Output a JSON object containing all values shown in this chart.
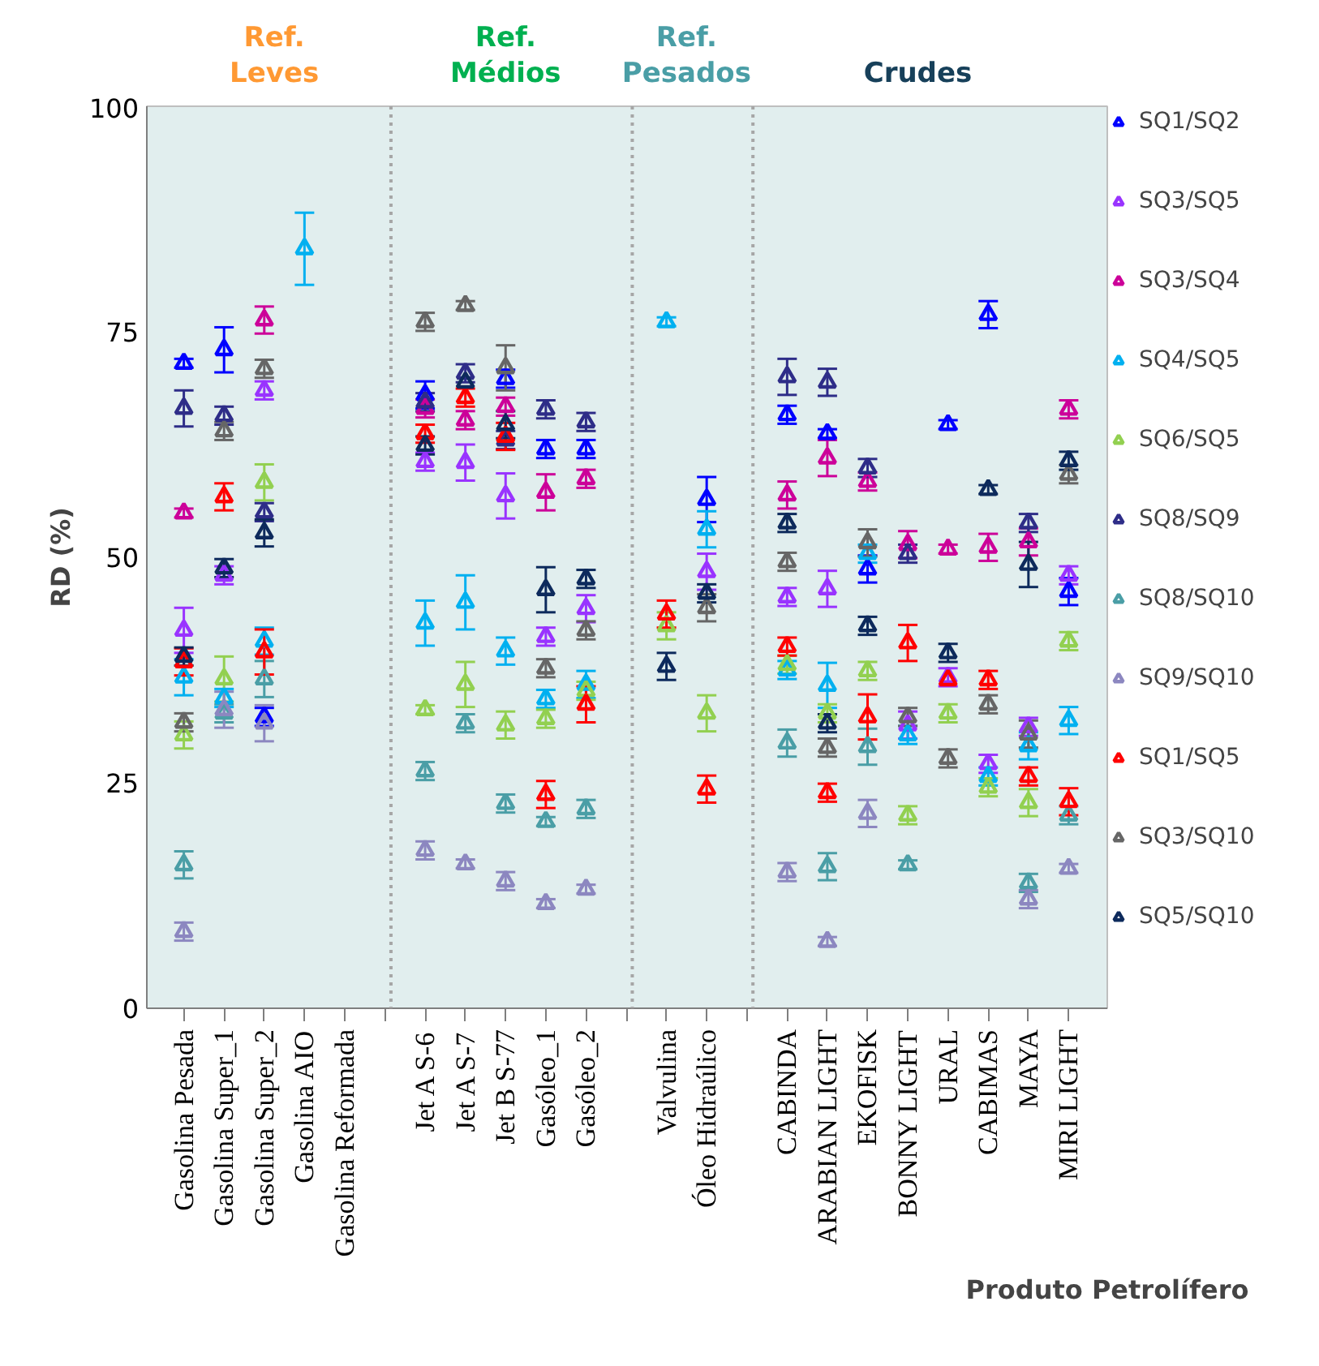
{
  "chart_data": {
    "type": "scatter",
    "ylabel": "RD (%)",
    "xlabel": "Produto Petrolífero",
    "annotations": [
      "Ref.\nLeves",
      "Ref.\nMédios",
      "Ref.\nPesados",
      "Crudes"
    ],
    "categories": [
      "Gasolina Pesada",
      "Gasolina Super_1",
      "Gasolina Super_2",
      "Gasolina AIO",
      "Gasolina Reformada",
      null,
      "Jet A S-6",
      "Jet A S-7",
      "Jet B S-77",
      "Gasóleo_1",
      "Gasóleo_2",
      null,
      "Valvulina",
      "Óleo Hidraúlico",
      null,
      "CABINDA",
      "ARABIAN LIGHT",
      "EKOFISK",
      "BONNY LIGHT",
      "URAL",
      "CABIMAS",
      "MAYA",
      "MIRI LIGHT"
    ],
    "ylim": [
      0,
      100
    ],
    "yticks": [
      0,
      25,
      50,
      75,
      100
    ],
    "grid": false,
    "legend": "right",
    "marker": "triangle",
    "series": [
      {
        "name": "SQ1/SQ2",
        "color": "#0000ff",
        "values": [
          71.5,
          73.0,
          32.3,
          null,
          null,
          null,
          68.0,
          null,
          69.8,
          62.0,
          62.0,
          null,
          null,
          56.4,
          null,
          65.8,
          63.7,
          48.7,
          null,
          64.7,
          76.9,
          null,
          46.2
        ],
        "errors": [
          0.5,
          2.5,
          1,
          null,
          null,
          null,
          1.5,
          null,
          1,
          1,
          1,
          null,
          null,
          2.5,
          null,
          1,
          0.5,
          1.5,
          null,
          0.5,
          1.5,
          null,
          1.5
        ]
      },
      {
        "name": "SQ3/SQ5",
        "color": "#9933ff",
        "values": [
          41.9,
          48.0,
          68.5,
          null,
          null,
          null,
          60.6,
          60.5,
          56.8,
          41.2,
          44.3,
          null,
          null,
          48.4,
          null,
          45.6,
          46.5,
          null,
          31.4,
          36.7,
          27.1,
          31.2,
          48.0
        ],
        "errors": [
          2.5,
          1,
          1,
          null,
          null,
          null,
          1,
          2,
          2.5,
          1,
          1.5,
          null,
          null,
          2,
          null,
          1,
          2,
          null,
          1.5,
          1,
          1,
          1,
          1
        ]
      },
      {
        "name": "SQ3/SQ4",
        "color": "#cc0099",
        "values": [
          54.9,
          null,
          76.3,
          null,
          null,
          null,
          66.5,
          65.2,
          66.7,
          57.2,
          58.7,
          null,
          null,
          null,
          null,
          56.9,
          61.0,
          58.4,
          51.4,
          50.9,
          51.1,
          51.7,
          66.4
        ],
        "errors": [
          0.5,
          null,
          1.5,
          null,
          null,
          null,
          1,
          1,
          1,
          2,
          1,
          null,
          null,
          null,
          null,
          1.5,
          2,
          1,
          1.5,
          0.5,
          1.5,
          1.5,
          1
        ]
      },
      {
        "name": "SQ4/SQ5",
        "color": "#00b0f0",
        "values": [
          36.7,
          34.4,
          40.7,
          84.2,
          null,
          null,
          42.7,
          45.0,
          39.6,
          34.3,
          35.9,
          null,
          76.1,
          53.1,
          null,
          37.5,
          35.8,
          50.4,
          30.3,
          null,
          25.7,
          29.1,
          31.9
        ],
        "errors": [
          2,
          1,
          1.5,
          4,
          null,
          null,
          2.5,
          3,
          1.5,
          1,
          1.5,
          null,
          0.5,
          2,
          null,
          1,
          2.5,
          1,
          1,
          null,
          1,
          1.5,
          1.5
        ]
      },
      {
        "name": "SQ6/SQ5",
        "color": "#92d050",
        "values": [
          30.3,
          36.5,
          58.3,
          null,
          null,
          null,
          33.1,
          35.9,
          31.4,
          32.1,
          35.2,
          null,
          42.4,
          32.7,
          null,
          38.1,
          32.7,
          37.4,
          21.4,
          32.7,
          24.5,
          22.8,
          40.7
        ],
        "errors": [
          1.5,
          2.5,
          2,
          null,
          null,
          null,
          0.5,
          2.5,
          1.5,
          1,
          1,
          null,
          1.5,
          2,
          null,
          1,
          1,
          1,
          1,
          1,
          1,
          1.5,
          1
        ]
      },
      {
        "name": "SQ8/SQ9",
        "color": "#2e2d88",
        "values": [
          66.5,
          65.7,
          55.0,
          null,
          null,
          null,
          67.2,
          70.4,
          63.0,
          66.4,
          65.0,
          null,
          null,
          null,
          null,
          70.0,
          69.4,
          59.9,
          50.4,
          null,
          null,
          53.8,
          null
        ],
        "errors": [
          2,
          1,
          1,
          null,
          null,
          null,
          1,
          1,
          1,
          1,
          1,
          null,
          null,
          null,
          null,
          2,
          1.5,
          1,
          1,
          null,
          null,
          1,
          null
        ]
      },
      {
        "name": "SQ8/SQ10",
        "color": "#4a9ea6",
        "values": [
          15.9,
          32.7,
          36.5,
          null,
          null,
          null,
          26.3,
          31.6,
          22.7,
          20.7,
          22.1,
          null,
          null,
          null,
          null,
          29.4,
          15.7,
          29.0,
          15.9,
          null,
          null,
          13.9,
          21.4
        ],
        "errors": [
          1.5,
          1,
          2,
          null,
          null,
          null,
          1,
          1,
          1,
          0.5,
          1,
          null,
          null,
          null,
          null,
          1.5,
          1.5,
          2,
          0.5,
          null,
          null,
          1,
          1
        ]
      },
      {
        "name": "SQ9/SQ10",
        "color": "#8c87c0",
        "values": [
          8.5,
          33.1,
          31.6,
          null,
          null,
          null,
          17.5,
          16.0,
          14.1,
          11.6,
          13.2,
          null,
          null,
          null,
          null,
          15.1,
          7.4,
          21.6,
          null,
          null,
          null,
          12.1,
          15.5
        ],
        "errors": [
          1,
          2,
          2,
          null,
          null,
          null,
          1,
          0.5,
          1,
          0.5,
          0.5,
          null,
          null,
          null,
          null,
          1,
          0.5,
          1.5,
          null,
          null,
          null,
          1,
          0.5
        ]
      },
      {
        "name": "SQ1/SQ5",
        "color": "#ff0000",
        "values": [
          38.4,
          56.7,
          39.5,
          null,
          null,
          null,
          63.7,
          67.7,
          63.4,
          23.7,
          33.7,
          null,
          43.7,
          24.3,
          null,
          40.1,
          23.9,
          32.3,
          40.5,
          36.4,
          36.4,
          25.7,
          22.9
        ],
        "errors": [
          1.5,
          1.5,
          2.5,
          null,
          null,
          null,
          1,
          1,
          1.5,
          1.5,
          2,
          null,
          1.5,
          1.5,
          null,
          1,
          1,
          2.5,
          2,
          null,
          1,
          1,
          1.5
        ]
      },
      {
        "name": "SQ3/SQ10",
        "color": "#666666",
        "values": [
          31.7,
          64.0,
          70.9,
          null,
          null,
          null,
          76.1,
          77.9,
          71.0,
          37.7,
          41.9,
          null,
          null,
          44.4,
          null,
          49.5,
          28.9,
          51.6,
          32.3,
          27.7,
          33.7,
          30.4,
          59.2
        ],
        "errors": [
          1,
          1,
          1,
          null,
          null,
          null,
          1,
          0.5,
          2.5,
          1,
          1,
          null,
          null,
          1.5,
          null,
          1,
          1,
          1.5,
          1,
          1,
          1,
          1.5,
          1
        ]
      },
      {
        "name": "SQ5/SQ10",
        "color": "#0d2a5c",
        "values": [
          39.0,
          48.8,
          52.7,
          null,
          null,
          null,
          62.4,
          69.4,
          64.7,
          46.4,
          47.6,
          null,
          37.9,
          46.0,
          null,
          53.8,
          31.6,
          42.4,
          null,
          39.4,
          57.5,
          49.2,
          60.7
        ],
        "errors": [
          1,
          1,
          1.5,
          null,
          null,
          null,
          1,
          null,
          1.5,
          2.5,
          1,
          null,
          1.5,
          1,
          null,
          1,
          1,
          1,
          null,
          1,
          0.5,
          2.5,
          1
        ]
      }
    ]
  }
}
